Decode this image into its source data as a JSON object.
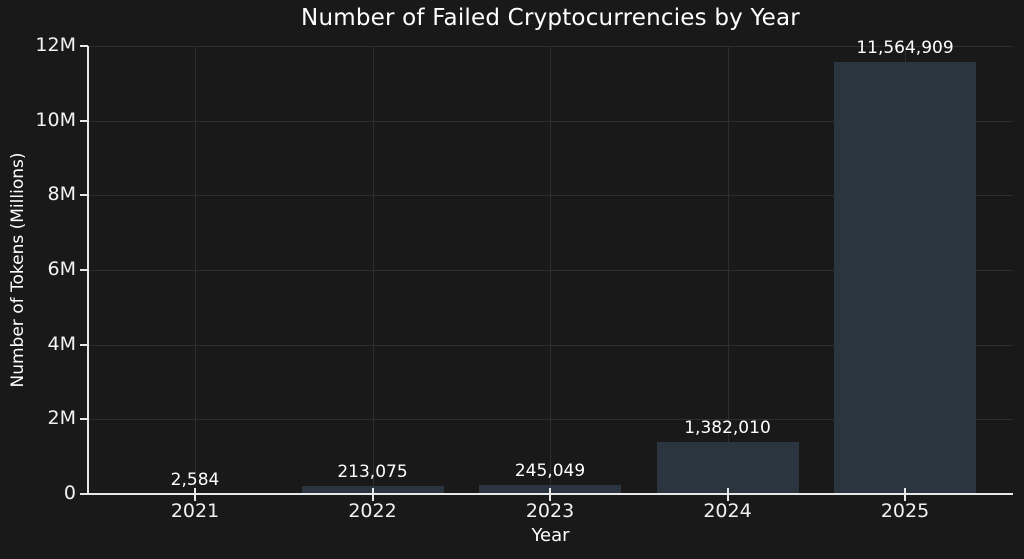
{
  "chart_data": {
    "type": "bar",
    "title": "Number of Failed Cryptocurrencies by Year",
    "xlabel": "Year",
    "ylabel": "Number of Tokens (Millions)",
    "categories": [
      "2021",
      "2022",
      "2023",
      "2024",
      "2025"
    ],
    "values": [
      2584,
      213075,
      245049,
      1382010,
      11564909
    ],
    "value_labels": [
      "2,584",
      "213,075",
      "245,049",
      "1,382,010",
      "11,564,909"
    ],
    "ylim": [
      0,
      12000000
    ],
    "yticks": [
      0,
      2000000,
      4000000,
      6000000,
      8000000,
      10000000,
      12000000
    ],
    "ytick_labels": [
      "0",
      "2M",
      "4M",
      "6M",
      "8M",
      "10M",
      "12M"
    ],
    "grid": true,
    "legend_position": "none"
  },
  "colors": {
    "background": "#191919",
    "bar": "#2b3540",
    "grid": "#2e2e2e",
    "axis": "#e8e8e8",
    "text": "#ffffff"
  }
}
